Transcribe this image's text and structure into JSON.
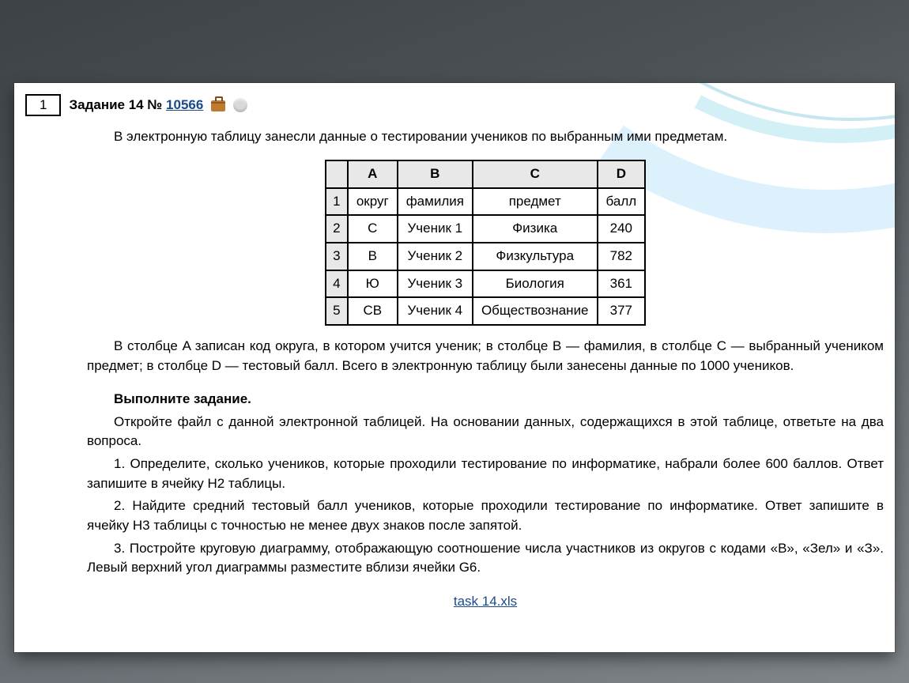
{
  "question_number": "1",
  "task_label": "Задание 14 ",
  "task_number_prefix": "№ ",
  "task_link_text": "10566",
  "intro": "В электронную таблицу занесли данные о тестировании учеников по выбранным ими предметам.",
  "table": {
    "columns": [
      "A",
      "B",
      "C",
      "D"
    ],
    "row_numbers": [
      "1",
      "2",
      "3",
      "4",
      "5"
    ],
    "rows": [
      [
        "округ",
        "фамилия",
        "предмет",
        "балл"
      ],
      [
        "С",
        "Ученик 1",
        "Физика",
        "240"
      ],
      [
        "В",
        "Ученик 2",
        "Физкультура",
        "782"
      ],
      [
        "Ю",
        "Ученик 3",
        "Биология",
        "361"
      ],
      [
        "СВ",
        "Ученик 4",
        "Обществознание",
        "377"
      ]
    ],
    "border_color": "#000000",
    "header_bg": "#e8e8e8",
    "cell_fontsize": 17
  },
  "explain": "В столбце A записан код округа, в котором учится ученик; в столбце B — фамилия, в столбце C — выбранный учеником предмет; в столбце D — тестовый балл. Всего в электронную таблицу были занесены данные по 1000 учеников.",
  "do_heading": "Выполните задание.",
  "open_file": "Откройте файл с данной электронной таблицей. На основании данных, содержащихся в этой таблице, ответьте на два вопроса.",
  "q1": "1. Определите, сколько учеников, которые проходили тестирование по информатике, набрали более 600 баллов. Ответ запишите в ячейку H2 таблицы.",
  "q2": "2. Найдите средний тестовый балл учеников, которые проходили тестирование по информатике. Ответ запишите в ячейку H3 таблицы с точностью не менее двух знаков после запятой.",
  "q3": "3. Постройте круговую диаграмму, отображающую соотношение числа участников из округов с кодами «В», «Зел» и «З». Левый верхний угол диаграммы разместите вблизи ячейки G6.",
  "download_label": "task 14.xls",
  "colors": {
    "link": "#1a4a8a",
    "page_bg": "#ffffff",
    "stage_bg_from": "#3d4246",
    "stage_bg_to": "#808589",
    "arc": "#d9f0fb"
  },
  "typography": {
    "base_fontsize": 17,
    "font_family": "Verdana, Arial, sans-serif",
    "heading_weight": "bold"
  }
}
